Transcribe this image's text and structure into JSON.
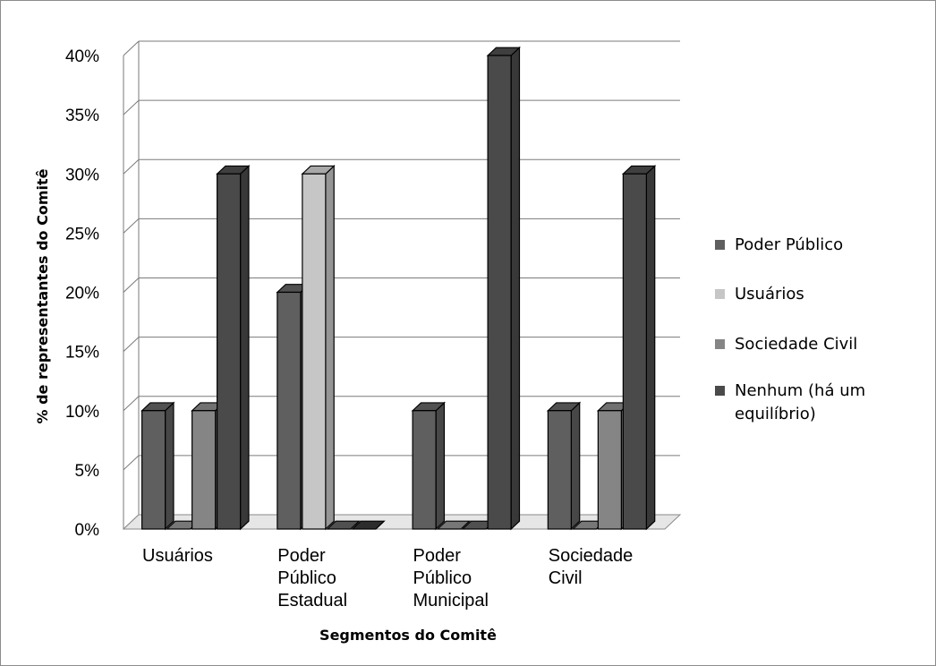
{
  "chart_data": {
    "type": "bar",
    "title": "",
    "xlabel": "Segmentos do Comitê",
    "ylabel": "% de representantes do Comitê",
    "ylim": [
      0,
      40
    ],
    "yticks": [
      "0%",
      "5%",
      "10%",
      "15%",
      "20%",
      "25%",
      "30%",
      "35%",
      "40%"
    ],
    "categories": [
      [
        "Usuários"
      ],
      [
        "Poder",
        "Público",
        "Estadual"
      ],
      [
        "Poder",
        "Público",
        "Municipal"
      ],
      [
        "Sociedade",
        "Civil"
      ]
    ],
    "series": [
      {
        "name": "Poder Público",
        "values": [
          10,
          20,
          10,
          10
        ],
        "color": "#5f5f5f"
      },
      {
        "name": "Usuários",
        "values": [
          0,
          30,
          0,
          0
        ],
        "color": "#c6c6c6"
      },
      {
        "name": "Sociedade Civil",
        "values": [
          10,
          0,
          0,
          10
        ],
        "color": "#858585"
      },
      {
        "name": "Nenhum (há um equilíbrio)",
        "values": [
          30,
          0,
          40,
          30
        ],
        "color": "#4a4a4a"
      }
    ],
    "legend": {
      "position": "right",
      "entries": [
        [
          "Poder Público"
        ],
        [
          "Usuários"
        ],
        [
          "Sociedade Civil"
        ],
        [
          "Nenhum (há um",
          "equilíbrio)"
        ]
      ]
    },
    "grid": true,
    "style": "3d-column"
  }
}
